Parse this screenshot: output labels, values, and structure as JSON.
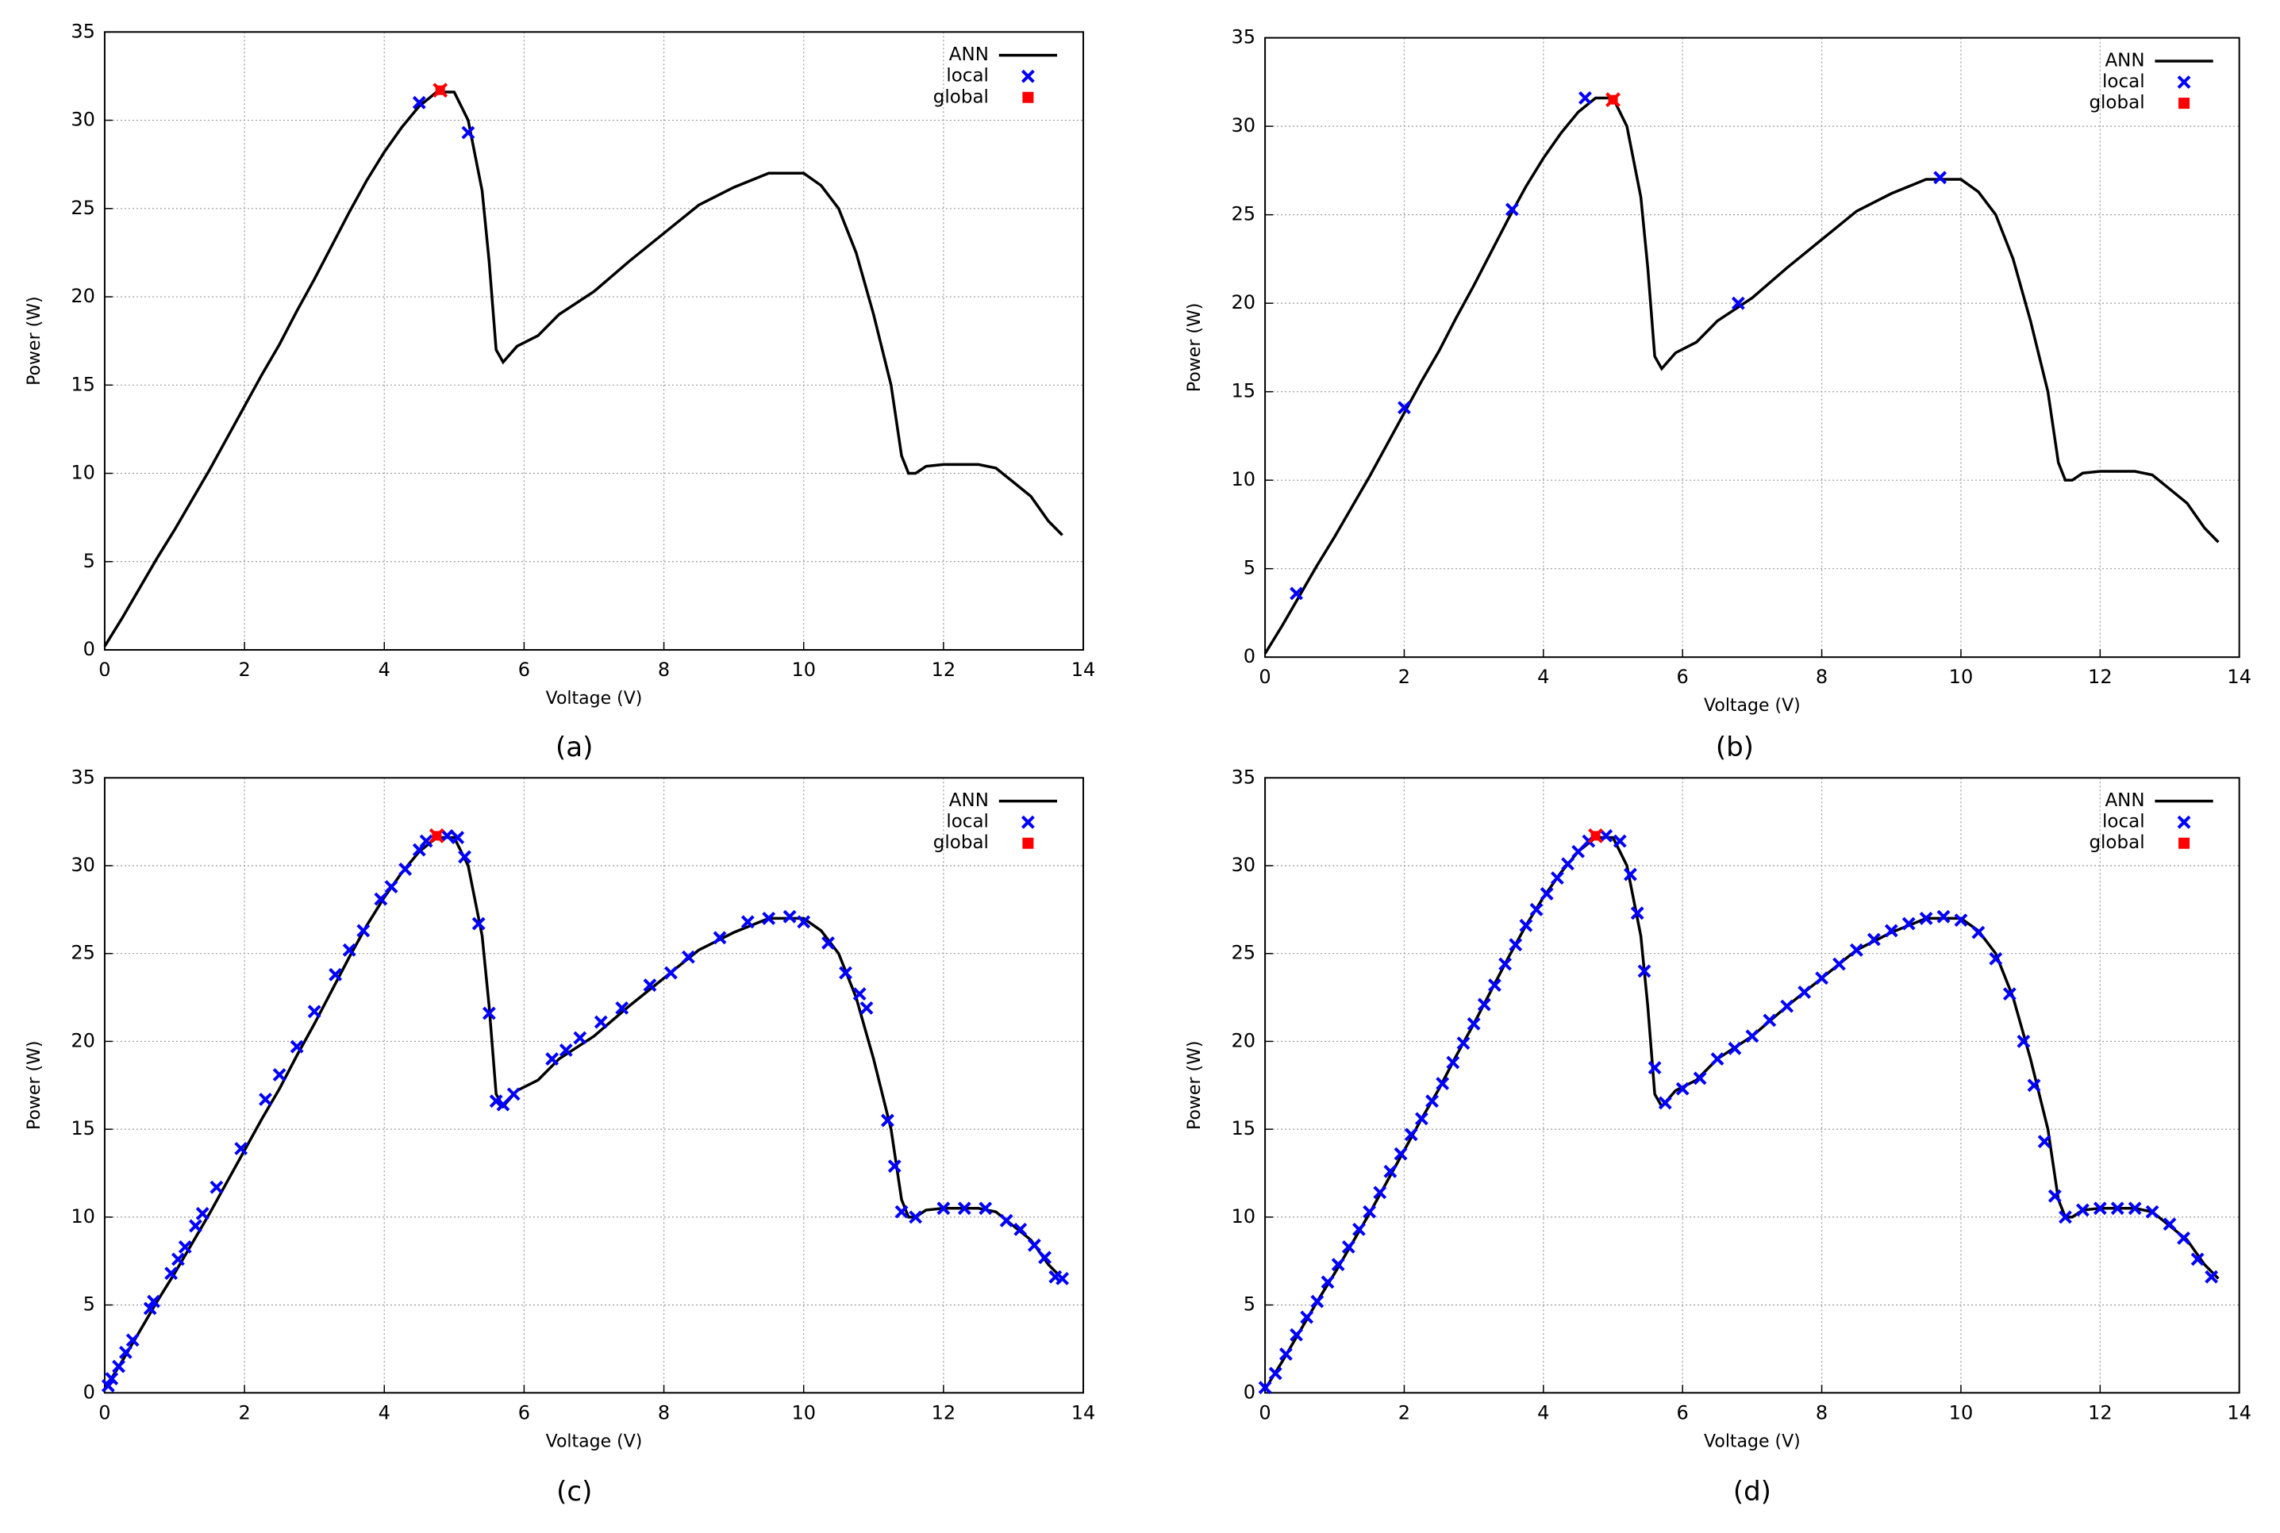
{
  "chart_data": [
    {
      "type": "line",
      "caption": "(a)",
      "xlabel": "Voltage (V)",
      "ylabel": "Power (W)",
      "xlim": [
        0,
        14
      ],
      "ylim": [
        0,
        35
      ],
      "xticks": [
        0,
        2,
        4,
        6,
        8,
        10,
        12,
        14
      ],
      "yticks": [
        0,
        5,
        10,
        15,
        20,
        25,
        30,
        35
      ],
      "grid": true,
      "legend": "upper right",
      "series": [
        {
          "name": "ANN",
          "type": "line",
          "color": "#000000",
          "x": [
            0,
            0.25,
            0.5,
            0.75,
            1,
            1.25,
            1.5,
            1.75,
            2,
            2.25,
            2.5,
            2.75,
            3,
            3.25,
            3.5,
            3.75,
            4,
            4.25,
            4.5,
            4.75,
            5,
            5.2,
            5.4,
            5.5,
            5.6,
            5.7,
            5.9,
            6.2,
            6.5,
            7,
            7.5,
            8,
            8.5,
            9,
            9.5,
            10,
            10.25,
            10.5,
            10.75,
            11,
            11.25,
            11.4,
            11.5,
            11.6,
            11.75,
            12,
            12.5,
            12.75,
            13,
            13.25,
            13.5,
            13.7
          ],
          "values": [
            0.2,
            1.8,
            3.5,
            5.2,
            6.8,
            8.5,
            10.2,
            12,
            13.8,
            15.6,
            17.3,
            19.2,
            21,
            22.9,
            24.8,
            26.6,
            28.2,
            29.6,
            30.8,
            31.6,
            31.6,
            30,
            26,
            22,
            17,
            16.3,
            17.2,
            17.8,
            19,
            20.3,
            22,
            23.6,
            25.2,
            26.2,
            27,
            27,
            26.3,
            25,
            22.5,
            19,
            15,
            11,
            10,
            10,
            10.4,
            10.5,
            10.5,
            10.3,
            9.5,
            8.7,
            7.3,
            6.5
          ]
        },
        {
          "name": "local",
          "type": "scatter",
          "marker": "x",
          "color": "#0000ff",
          "x": [
            4.5,
            5.2
          ],
          "values": [
            31,
            29.3
          ]
        },
        {
          "name": "global",
          "type": "scatter",
          "marker": "filled",
          "color": "#ff0000",
          "x": [
            4.8
          ],
          "values": [
            31.7
          ]
        }
      ]
    },
    {
      "type": "line",
      "caption": "(b)",
      "xlabel": "Voltage (V)",
      "ylabel": "Power (W)",
      "xlim": [
        0,
        14
      ],
      "ylim": [
        0,
        35
      ],
      "xticks": [
        0,
        2,
        4,
        6,
        8,
        10,
        12,
        14
      ],
      "yticks": [
        0,
        5,
        10,
        15,
        20,
        25,
        30,
        35
      ],
      "grid": true,
      "legend": "upper right",
      "series": [
        {
          "name": "ANN",
          "type": "line",
          "color": "#000000",
          "x": [
            0,
            0.25,
            0.5,
            0.75,
            1,
            1.25,
            1.5,
            1.75,
            2,
            2.25,
            2.5,
            2.75,
            3,
            3.25,
            3.5,
            3.75,
            4,
            4.25,
            4.5,
            4.75,
            5,
            5.2,
            5.4,
            5.5,
            5.6,
            5.7,
            5.9,
            6.2,
            6.5,
            7,
            7.5,
            8,
            8.5,
            9,
            9.5,
            10,
            10.25,
            10.5,
            10.75,
            11,
            11.25,
            11.4,
            11.5,
            11.6,
            11.75,
            12,
            12.5,
            12.75,
            13,
            13.25,
            13.5,
            13.7
          ],
          "values": [
            0.2,
            1.8,
            3.5,
            5.2,
            6.8,
            8.5,
            10.2,
            12,
            13.8,
            15.6,
            17.3,
            19.2,
            21,
            22.9,
            24.8,
            26.6,
            28.2,
            29.6,
            30.8,
            31.6,
            31.6,
            30,
            26,
            22,
            17,
            16.3,
            17.2,
            17.8,
            19,
            20.3,
            22,
            23.6,
            25.2,
            26.2,
            27,
            27,
            26.3,
            25,
            22.5,
            19,
            15,
            11,
            10,
            10,
            10.4,
            10.5,
            10.5,
            10.3,
            9.5,
            8.7,
            7.3,
            6.5
          ]
        },
        {
          "name": "local",
          "type": "scatter",
          "marker": "x",
          "color": "#0000ff",
          "x": [
            0.45,
            2,
            3.55,
            4.6,
            6.8,
            9.7
          ],
          "values": [
            3.6,
            14.1,
            25.3,
            31.6,
            20,
            27.1
          ]
        },
        {
          "name": "global",
          "type": "scatter",
          "marker": "filled",
          "color": "#ff0000",
          "x": [
            5
          ],
          "values": [
            31.5
          ]
        }
      ]
    },
    {
      "type": "line",
      "caption": "(c)",
      "xlabel": "Voltage (V)",
      "ylabel": "Power (W)",
      "xlim": [
        0,
        14
      ],
      "ylim": [
        0,
        35
      ],
      "xticks": [
        0,
        2,
        4,
        6,
        8,
        10,
        12,
        14
      ],
      "yticks": [
        0,
        5,
        10,
        15,
        20,
        25,
        30,
        35
      ],
      "grid": true,
      "legend": "upper right",
      "series": [
        {
          "name": "ANN",
          "type": "line",
          "color": "#000000",
          "x": [
            0,
            0.25,
            0.5,
            0.75,
            1,
            1.25,
            1.5,
            1.75,
            2,
            2.25,
            2.5,
            2.75,
            3,
            3.25,
            3.5,
            3.75,
            4,
            4.25,
            4.5,
            4.75,
            5,
            5.2,
            5.4,
            5.5,
            5.6,
            5.7,
            5.9,
            6.2,
            6.5,
            7,
            7.5,
            8,
            8.5,
            9,
            9.5,
            10,
            10.25,
            10.5,
            10.75,
            11,
            11.25,
            11.4,
            11.5,
            11.6,
            11.75,
            12,
            12.5,
            12.75,
            13,
            13.25,
            13.5,
            13.7
          ],
          "values": [
            0.2,
            1.8,
            3.5,
            5.2,
            6.8,
            8.5,
            10.2,
            12,
            13.8,
            15.6,
            17.3,
            19.2,
            21,
            22.9,
            24.8,
            26.6,
            28.2,
            29.6,
            30.8,
            31.6,
            31.6,
            30,
            26,
            22,
            17,
            16.3,
            17.2,
            17.8,
            19,
            20.3,
            22,
            23.6,
            25.2,
            26.2,
            27,
            27,
            26.3,
            25,
            22.5,
            19,
            15,
            11,
            10,
            10,
            10.4,
            10.5,
            10.5,
            10.3,
            9.5,
            8.7,
            7.3,
            6.5
          ]
        },
        {
          "name": "local",
          "type": "scatter",
          "marker": "x",
          "color": "#0000ff",
          "x": [
            0.05,
            0.1,
            0.2,
            0.3,
            0.4,
            0.65,
            0.7,
            0.95,
            1.05,
            1.15,
            1.3,
            1.4,
            1.6,
            1.95,
            2.3,
            2.5,
            2.75,
            3.0,
            3.3,
            3.5,
            3.7,
            3.95,
            4.1,
            4.3,
            4.5,
            4.6,
            4.9,
            5.05,
            5.15,
            5.35,
            5.5,
            5.6,
            5.7,
            5.85,
            6.4,
            6.6,
            6.8,
            7.1,
            7.4,
            7.8,
            8.1,
            8.35,
            8.8,
            9.2,
            9.5,
            9.8,
            10.0,
            10.35,
            10.6,
            10.8,
            10.9,
            11.2,
            11.3,
            11.4,
            11.6,
            12,
            12.3,
            12.6,
            12.9,
            13.1,
            13.3,
            13.45,
            13.6,
            13.7
          ],
          "values": [
            0.4,
            0.8,
            1.5,
            2.3,
            3,
            4.8,
            5.2,
            6.8,
            7.6,
            8.3,
            9.5,
            10.2,
            11.7,
            13.9,
            16.7,
            18.1,
            19.7,
            21.7,
            23.8,
            25.2,
            26.3,
            28.1,
            28.8,
            29.8,
            30.9,
            31.4,
            31.7,
            31.6,
            30.5,
            26.7,
            21.6,
            16.6,
            16.4,
            17,
            19,
            19.5,
            20.2,
            21.1,
            21.9,
            23.2,
            23.9,
            24.8,
            25.9,
            26.8,
            27,
            27.1,
            26.8,
            25.6,
            23.9,
            22.7,
            21.9,
            15.5,
            12.9,
            10.3,
            10,
            10.5,
            10.5,
            10.5,
            9.8,
            9.3,
            8.4,
            7.7,
            6.6,
            6.5
          ]
        },
        {
          "name": "global",
          "type": "scatter",
          "marker": "filled",
          "color": "#ff0000",
          "x": [
            4.75
          ],
          "values": [
            31.7
          ]
        }
      ]
    },
    {
      "type": "line",
      "caption": "(d)",
      "xlabel": "Voltage (V)",
      "ylabel": "Power (W)",
      "xlim": [
        0,
        14
      ],
      "ylim": [
        0,
        35
      ],
      "xticks": [
        0,
        2,
        4,
        6,
        8,
        10,
        12,
        14
      ],
      "yticks": [
        0,
        5,
        10,
        15,
        20,
        25,
        30,
        35
      ],
      "grid": true,
      "legend": "upper right",
      "series": [
        {
          "name": "ANN",
          "type": "line",
          "color": "#000000",
          "x": [
            0,
            0.25,
            0.5,
            0.75,
            1,
            1.25,
            1.5,
            1.75,
            2,
            2.25,
            2.5,
            2.75,
            3,
            3.25,
            3.5,
            3.75,
            4,
            4.25,
            4.5,
            4.75,
            5,
            5.2,
            5.4,
            5.5,
            5.6,
            5.7,
            5.9,
            6.2,
            6.5,
            7,
            7.5,
            8,
            8.5,
            9,
            9.5,
            10,
            10.25,
            10.5,
            10.75,
            11,
            11.25,
            11.4,
            11.5,
            11.6,
            11.75,
            12,
            12.5,
            12.75,
            13,
            13.25,
            13.5,
            13.7
          ],
          "values": [
            0.2,
            1.8,
            3.5,
            5.2,
            6.8,
            8.5,
            10.2,
            12,
            13.8,
            15.6,
            17.3,
            19.2,
            21,
            22.9,
            24.8,
            26.6,
            28.2,
            29.6,
            30.8,
            31.6,
            31.6,
            30,
            26,
            22,
            17,
            16.3,
            17.2,
            17.8,
            19,
            20.3,
            22,
            23.6,
            25.2,
            26.2,
            27,
            27,
            26.3,
            25,
            22.5,
            19,
            15,
            11,
            10,
            10,
            10.4,
            10.5,
            10.5,
            10.3,
            9.5,
            8.7,
            7.3,
            6.5
          ]
        },
        {
          "name": "local",
          "type": "scatter",
          "marker": "x",
          "color": "#0000ff",
          "x": [
            0,
            0.15,
            0.3,
            0.45,
            0.6,
            0.75,
            0.9,
            1.05,
            1.2,
            1.35,
            1.5,
            1.65,
            1.8,
            1.95,
            2.1,
            2.25,
            2.4,
            2.55,
            2.7,
            2.85,
            3,
            3.15,
            3.3,
            3.45,
            3.6,
            3.75,
            3.9,
            4.05,
            4.2,
            4.35,
            4.5,
            4.65,
            4.9,
            5.1,
            5.25,
            5.35,
            5.45,
            5.6,
            5.75,
            6,
            6.25,
            6.5,
            6.75,
            7,
            7.25,
            7.5,
            7.75,
            8,
            8.25,
            8.5,
            8.75,
            9,
            9.25,
            9.5,
            9.75,
            10,
            10.25,
            10.5,
            10.7,
            10.9,
            11.05,
            11.2,
            11.35,
            11.5,
            11.75,
            12,
            12.25,
            12.5,
            12.75,
            13,
            13.2,
            13.4,
            13.6
          ],
          "values": [
            0.3,
            1.1,
            2.2,
            3.3,
            4.3,
            5.2,
            6.3,
            7.3,
            8.3,
            9.3,
            10.3,
            11.4,
            12.6,
            13.6,
            14.7,
            15.6,
            16.6,
            17.6,
            18.8,
            19.9,
            21,
            22.1,
            23.2,
            24.4,
            25.5,
            26.6,
            27.5,
            28.4,
            29.3,
            30.1,
            30.8,
            31.4,
            31.7,
            31.4,
            29.5,
            27.3,
            24,
            18.5,
            16.5,
            17.3,
            17.9,
            19,
            19.6,
            20.3,
            21.2,
            22,
            22.8,
            23.6,
            24.4,
            25.2,
            25.8,
            26.3,
            26.7,
            27,
            27.1,
            26.9,
            26.2,
            24.7,
            22.7,
            20,
            17.5,
            14.3,
            11.2,
            10,
            10.4,
            10.5,
            10.5,
            10.5,
            10.3,
            9.6,
            8.8,
            7.6,
            6.6
          ]
        },
        {
          "name": "global",
          "type": "scatter",
          "marker": "filled",
          "color": "#ff0000",
          "x": [
            4.75
          ],
          "values": [
            31.7
          ]
        }
      ]
    }
  ]
}
